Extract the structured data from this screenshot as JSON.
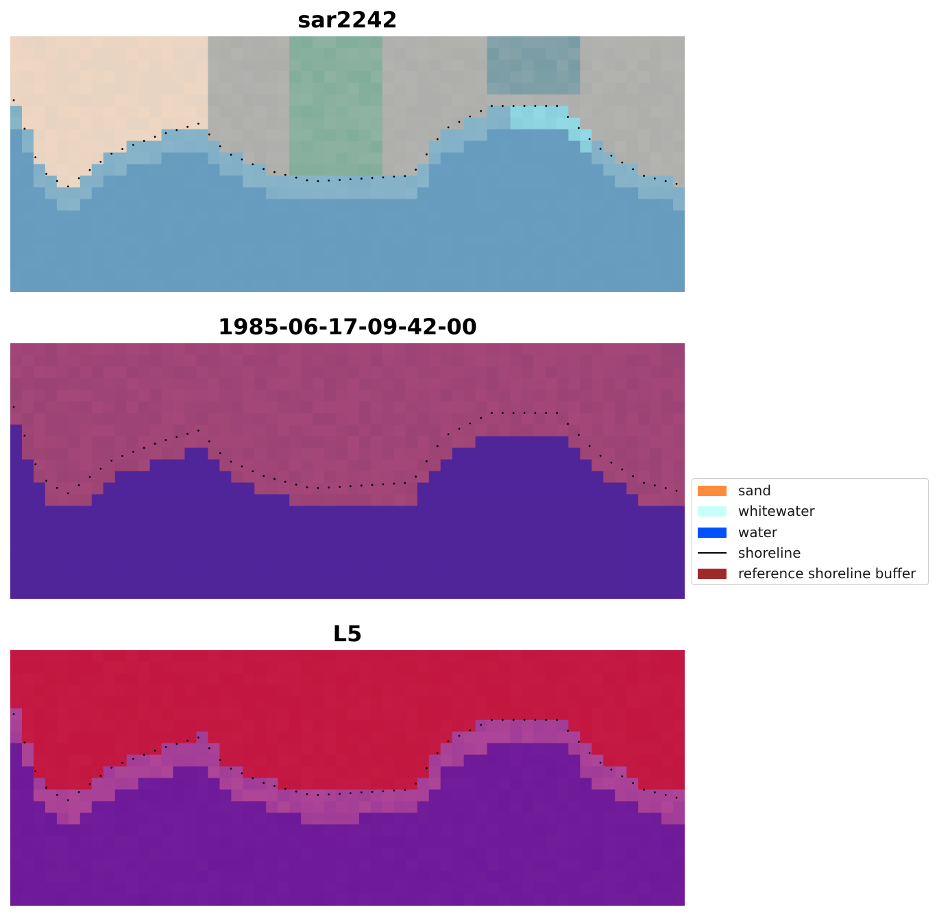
{
  "panels": [
    {
      "title": "sar2242",
      "style": "rgb"
    },
    {
      "title": "1985-06-17-09-42-00",
      "style": "class"
    },
    {
      "title": "L5",
      "style": "prob"
    }
  ],
  "legend": {
    "items": [
      {
        "label": "sand",
        "color": "#ff8c3a",
        "kind": "patch"
      },
      {
        "label": "whitewater",
        "color": "#c8fffa",
        "kind": "patch"
      },
      {
        "label": "water",
        "color": "#0052ff",
        "kind": "patch"
      },
      {
        "label": "shoreline",
        "color": "#000000",
        "kind": "line"
      },
      {
        "label": "reference shoreline buffer",
        "color": "#a02a2a",
        "kind": "patch"
      }
    ]
  },
  "colors": {
    "water_class": "#51259a",
    "land_class": "#a8497a",
    "land_prob": "#c2143e",
    "water_prob": "#731e9a",
    "sand_rgb": "#f3d8c2",
    "water_rgb": "#6a9fc0",
    "whitewater_rgb": "#a4f5f6"
  },
  "grid": {
    "cols": 58,
    "rows": 22
  }
}
